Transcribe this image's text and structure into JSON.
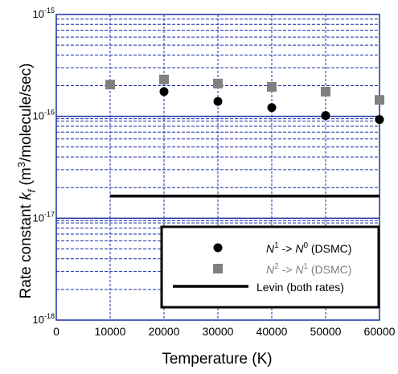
{
  "chart_data": {
    "type": "scatter",
    "title": "",
    "xlabel": "Temperature (K)",
    "ylabel_main": "Rate constant ",
    "ylabel_k": "k",
    "ylabel_f": "f",
    "ylabel_unit": " (m",
    "ylabel_cube": "3",
    "ylabel_rest": "/molecule/sec)",
    "xlim": [
      0,
      60000
    ],
    "ylim": [
      1e-18,
      1e-15
    ],
    "yscale": "log",
    "grid": true,
    "x_ticks": [
      "0",
      "10000",
      "20000",
      "30000",
      "40000",
      "50000",
      "60000"
    ],
    "y_ticks": [
      {
        "base": "10",
        "exp": "-18"
      },
      {
        "base": "10",
        "exp": "-17"
      },
      {
        "base": "10",
        "exp": "-16"
      },
      {
        "base": "10",
        "exp": "-15"
      }
    ],
    "legend_position": "bottom-right",
    "series": [
      {
        "key": "n1",
        "marker": "circle",
        "color": "#000000",
        "legend_parts": [
          {
            "t": "N",
            "i": true
          },
          {
            "t": "1",
            "sup": true
          },
          {
            "t": " -> "
          },
          {
            "t": "N",
            "i": true
          },
          {
            "t": "0",
            "sup": true
          },
          {
            "t": " (DSMC)"
          }
        ],
        "x": [
          20000,
          30000,
          40000,
          50000,
          60000
        ],
        "y": [
          1.75e-16,
          1.4e-16,
          1.22e-16,
          1.02e-16,
          9.3e-17
        ]
      },
      {
        "key": "n2",
        "marker": "square",
        "color": "#808080",
        "legend_parts": [
          {
            "t": "N",
            "i": true
          },
          {
            "t": "2",
            "sup": true
          },
          {
            "t": " -> "
          },
          {
            "t": "N",
            "i": true
          },
          {
            "t": "1",
            "sup": true
          },
          {
            "t": " (DSMC)"
          }
        ],
        "x": [
          10000,
          20000,
          30000,
          40000,
          50000,
          60000
        ],
        "y": [
          2.05e-16,
          2.3e-16,
          2.1e-16,
          1.95e-16,
          1.75e-16,
          1.45e-16
        ]
      },
      {
        "key": "levin",
        "marker": "line",
        "color": "#000000",
        "legend_parts": [
          {
            "t": "Levin (both rates)"
          }
        ],
        "x": [
          10000,
          60000
        ],
        "y": [
          1.65e-17,
          1.65e-17
        ]
      }
    ]
  }
}
